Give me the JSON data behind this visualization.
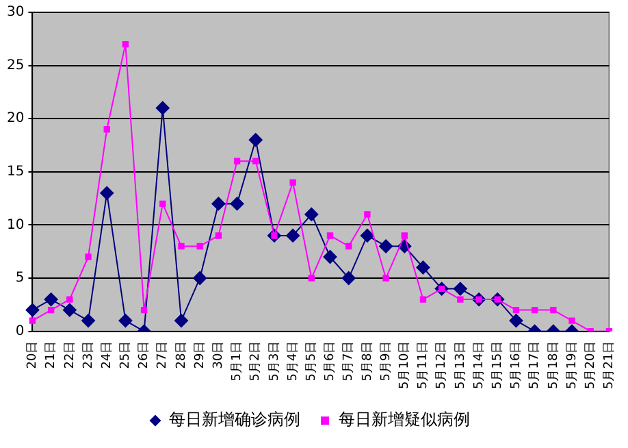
{
  "chart_data": {
    "type": "line",
    "categories": [
      "20日",
      "21日",
      "22日",
      "23日",
      "24日",
      "25日",
      "26日",
      "27日",
      "28日",
      "29日",
      "30日",
      "5月1日",
      "5月2日",
      "5月3日",
      "5月4日",
      "5月5日",
      "5月6日",
      "5月7日",
      "5月8日",
      "5月9日",
      "5月10日",
      "5月11日",
      "5月12日",
      "5月13日",
      "5月14日",
      "5月15日",
      "5月16日",
      "5月17日",
      "5月18日",
      "5月19日",
      "5月20日",
      "5月21日"
    ],
    "series": [
      {
        "name": "每日新增确诊病例",
        "color": "#000080",
        "marker": "diamond",
        "values": [
          2,
          3,
          2,
          1,
          13,
          1,
          0,
          21,
          1,
          5,
          12,
          12,
          18,
          9,
          9,
          11,
          7,
          5,
          9,
          8,
          8,
          6,
          4,
          4,
          3,
          3,
          1,
          0,
          0,
          0,
          null,
          null
        ]
      },
      {
        "name": "每日新增疑似病例",
        "color": "#ff00ff",
        "marker": "square",
        "values": [
          1,
          2,
          3,
          7,
          19,
          27,
          2,
          12,
          8,
          8,
          9,
          16,
          16,
          9,
          14,
          5,
          9,
          8,
          11,
          5,
          9,
          3,
          4,
          3,
          3,
          3,
          2,
          2,
          2,
          1,
          0,
          0
        ]
      }
    ],
    "ylim": [
      0,
      30
    ],
    "yticks": [
      0,
      5,
      10,
      15,
      20,
      25,
      30
    ],
    "grid": "y",
    "legend": "bottom",
    "line_style": "solid"
  }
}
